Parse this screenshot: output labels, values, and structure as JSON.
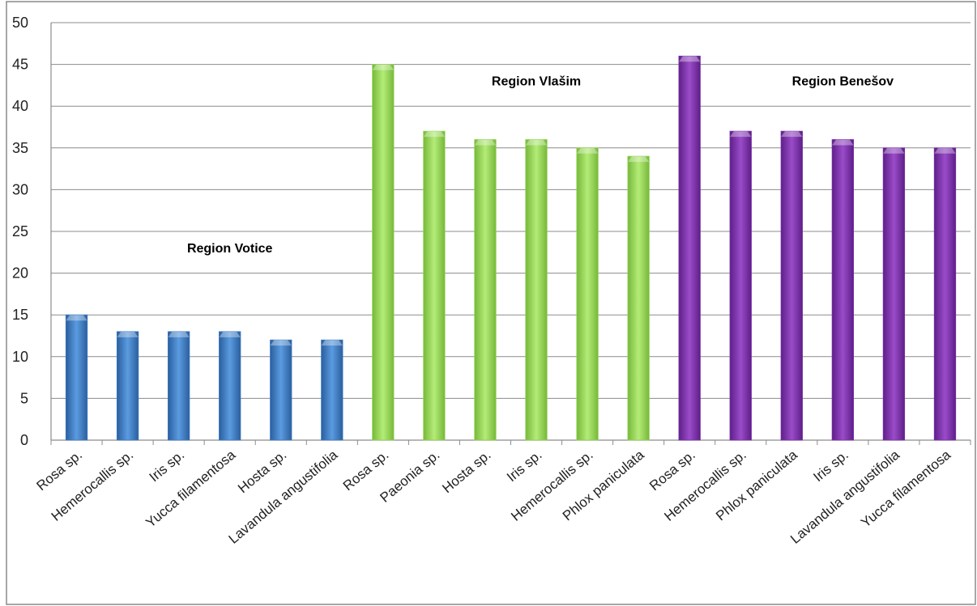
{
  "chart_data": {
    "type": "bar",
    "title": "",
    "xlabel": "",
    "ylabel": "",
    "ylim": [
      0,
      50
    ],
    "yticks": [
      0,
      5,
      10,
      15,
      20,
      25,
      30,
      35,
      40,
      45,
      50
    ],
    "grid": true,
    "legend": "none",
    "groups": [
      {
        "name": "Region Votice",
        "color": "#3c78c3",
        "categories": [
          "Rosa sp.",
          "Hemerocallis sp.",
          "Iris sp.",
          "Yucca filamentosa",
          "Hosta sp.",
          "Lavandula angustifolia"
        ],
        "values": [
          15,
          13,
          13,
          13,
          12,
          12
        ]
      },
      {
        "name": "Region Vlašim",
        "color": "#8fd14f",
        "categories": [
          "Rosa sp.",
          "Paeonia sp.",
          "Hosta sp.",
          "Iris sp.",
          "Hemerocallis sp.",
          "Phlox paniculata"
        ],
        "values": [
          45,
          37,
          36,
          36,
          35,
          34
        ]
      },
      {
        "name": "Region Benešov",
        "color": "#7a2fa8",
        "categories": [
          "Rosa sp.",
          "Hemerocallis sp.",
          "Phlox paniculata",
          "Iris sp.",
          "Lavandula angustifolia",
          "Yucca filamentosa"
        ],
        "values": [
          46,
          37,
          37,
          36,
          35,
          35
        ]
      }
    ]
  }
}
